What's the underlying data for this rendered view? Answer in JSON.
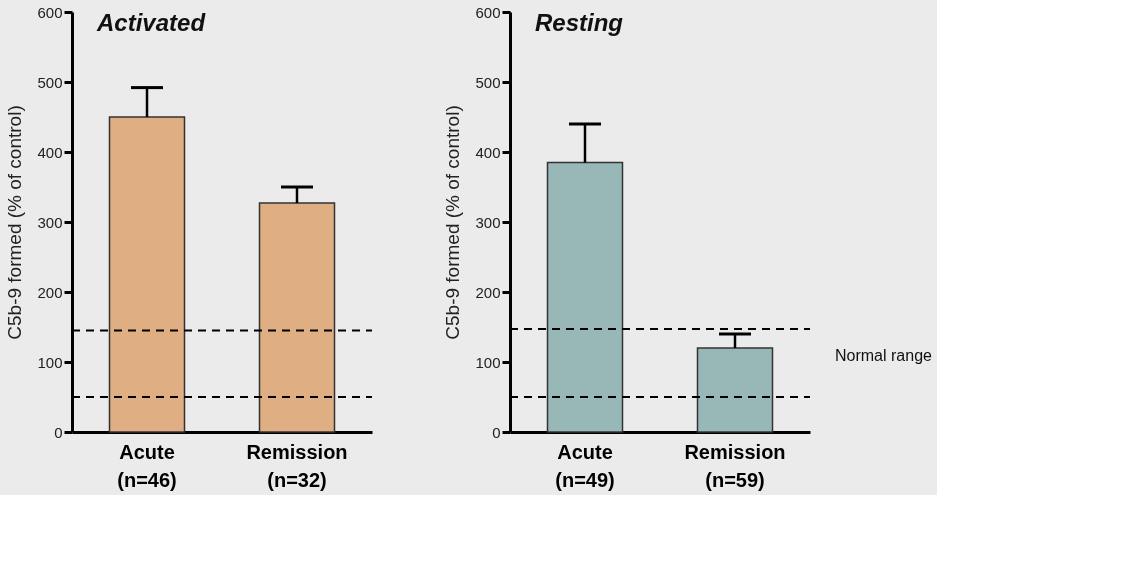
{
  "chart_data": [
    {
      "type": "bar",
      "title": "Activated",
      "ylabel": "C5b-9 formed (% of control)",
      "categories": [
        "Acute\n(n=46)",
        "Remission\n(n=32)"
      ],
      "values": [
        450,
        327
      ],
      "color": "#dfae82",
      "errors": [
        [
          450,
          492
        ],
        [
          327,
          350
        ]
      ],
      "ylim": [
        0,
        600
      ],
      "yticks": [
        0,
        100,
        200,
        300,
        400,
        500,
        600
      ],
      "grid": false,
      "ref_lines": [
        {
          "axis": "y",
          "value": 145,
          "line_style": "dashed",
          "color": "#000000"
        },
        {
          "axis": "y",
          "value": 50,
          "line_style": "dashed",
          "color": "#000000"
        }
      ]
    },
    {
      "type": "bar",
      "title": "Resting",
      "ylabel": "C5b-9 formed (% of control)",
      "categories": [
        "Acute\n(n=49)",
        "Remission\n(n=59)"
      ],
      "values": [
        385,
        120
      ],
      "color": "#98b8b8",
      "errors": [
        [
          385,
          440
        ],
        [
          120,
          140
        ]
      ],
      "ylim": [
        0,
        600
      ],
      "yticks": [
        0,
        100,
        200,
        300,
        400,
        500,
        600
      ],
      "grid": false,
      "ref_lines": [
        {
          "axis": "y",
          "value": 147,
          "line_style": "dashed",
          "color": "#000000"
        },
        {
          "axis": "y",
          "value": 50,
          "line_style": "dashed",
          "color": "#000000"
        }
      ],
      "annotations": [
        "Normal range"
      ]
    }
  ]
}
